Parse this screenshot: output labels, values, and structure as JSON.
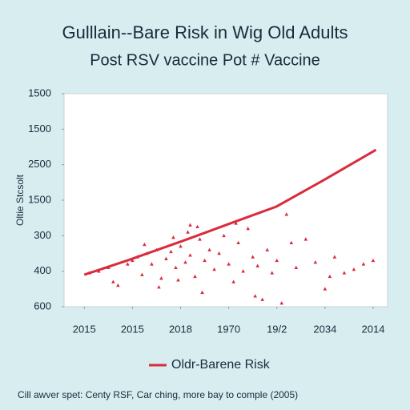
{
  "chart_data": {
    "type": "scatter",
    "title": "Gulllain--Bare Risk in Wig Old Adults",
    "subtitle": "Post RSV vaccine Pot # Vaccine",
    "y_label": "Oltie Stcsolt",
    "caption": "Cill awver spet: Centy RSF, Car ching, more bay to comple (2005)",
    "xlim": [
      -0.42,
      6.3
    ],
    "ylim": [
      0,
      6
    ],
    "xticks": [
      {
        "value": 0,
        "label": "2015"
      },
      {
        "value": 1,
        "label": "2015"
      },
      {
        "value": 2,
        "label": "2018"
      },
      {
        "value": 3,
        "label": "1970"
      },
      {
        "value": 4,
        "label": "19/2"
      },
      {
        "value": 5,
        "label": "2034"
      },
      {
        "value": 6,
        "label": "2014"
      }
    ],
    "yticks": [
      {
        "value": 0,
        "label": "600"
      },
      {
        "value": 1,
        "label": "400"
      },
      {
        "value": 2,
        "label": "300"
      },
      {
        "value": 3,
        "label": "1500"
      },
      {
        "value": 4,
        "label": "2500"
      },
      {
        "value": 5,
        "label": "1500"
      },
      {
        "value": 6,
        "label": "1500"
      }
    ],
    "legend": "bottom",
    "series": [
      {
        "name": "Oldr-Barene Risk",
        "mode": "line",
        "color": "#d92b3c",
        "x": [
          0,
          0.91,
          2.08,
          3.08,
          3.99,
          4.98,
          6.06
        ],
        "values": [
          0.9,
          1.31,
          1.87,
          2.37,
          2.82,
          3.57,
          4.42
        ]
      },
      {
        "mode": "markers",
        "color": "#d92b3c",
        "x": [
          0.1,
          0.3,
          0.5,
          0.7,
          0.9,
          1.0,
          1.1,
          1.2,
          1.3,
          1.4,
          1.5,
          1.6,
          1.7,
          1.8,
          1.9,
          2.0,
          2.1,
          2.2,
          2.3,
          2.4,
          2.5,
          2.6,
          2.7,
          2.8,
          2.9,
          3.0,
          3.1,
          3.2,
          3.3,
          3.4,
          3.5,
          3.6,
          3.7,
          3.8,
          3.9,
          4.0,
          4.1,
          4.2,
          4.4,
          4.6,
          4.8,
          5.0,
          5.2,
          5.4,
          5.6,
          5.8,
          6.0,
          1.25,
          1.55,
          1.85,
          2.15,
          2.45,
          2.35,
          1.95,
          3.15,
          3.55,
          0.6,
          2.2,
          4.3,
          5.1
        ],
        "values": [
          0.95,
          1.0,
          1.1,
          0.6,
          1.2,
          1.3,
          1.4,
          0.9,
          1.5,
          1.2,
          1.6,
          0.8,
          1.35,
          1.55,
          1.1,
          1.7,
          1.25,
          1.45,
          0.85,
          1.9,
          1.3,
          1.6,
          1.05,
          1.5,
          2.0,
          1.2,
          0.7,
          1.8,
          1.0,
          2.2,
          1.4,
          1.15,
          0.2,
          1.6,
          0.95,
          1.3,
          0.1,
          2.6,
          1.1,
          1.9,
          1.25,
          0.5,
          1.4,
          0.95,
          1.05,
          1.2,
          1.3,
          1.75,
          0.55,
          1.95,
          2.1,
          0.4,
          2.25,
          0.75,
          2.35,
          0.3,
          0.7,
          2.3,
          1.8,
          0.85
        ]
      }
    ]
  }
}
